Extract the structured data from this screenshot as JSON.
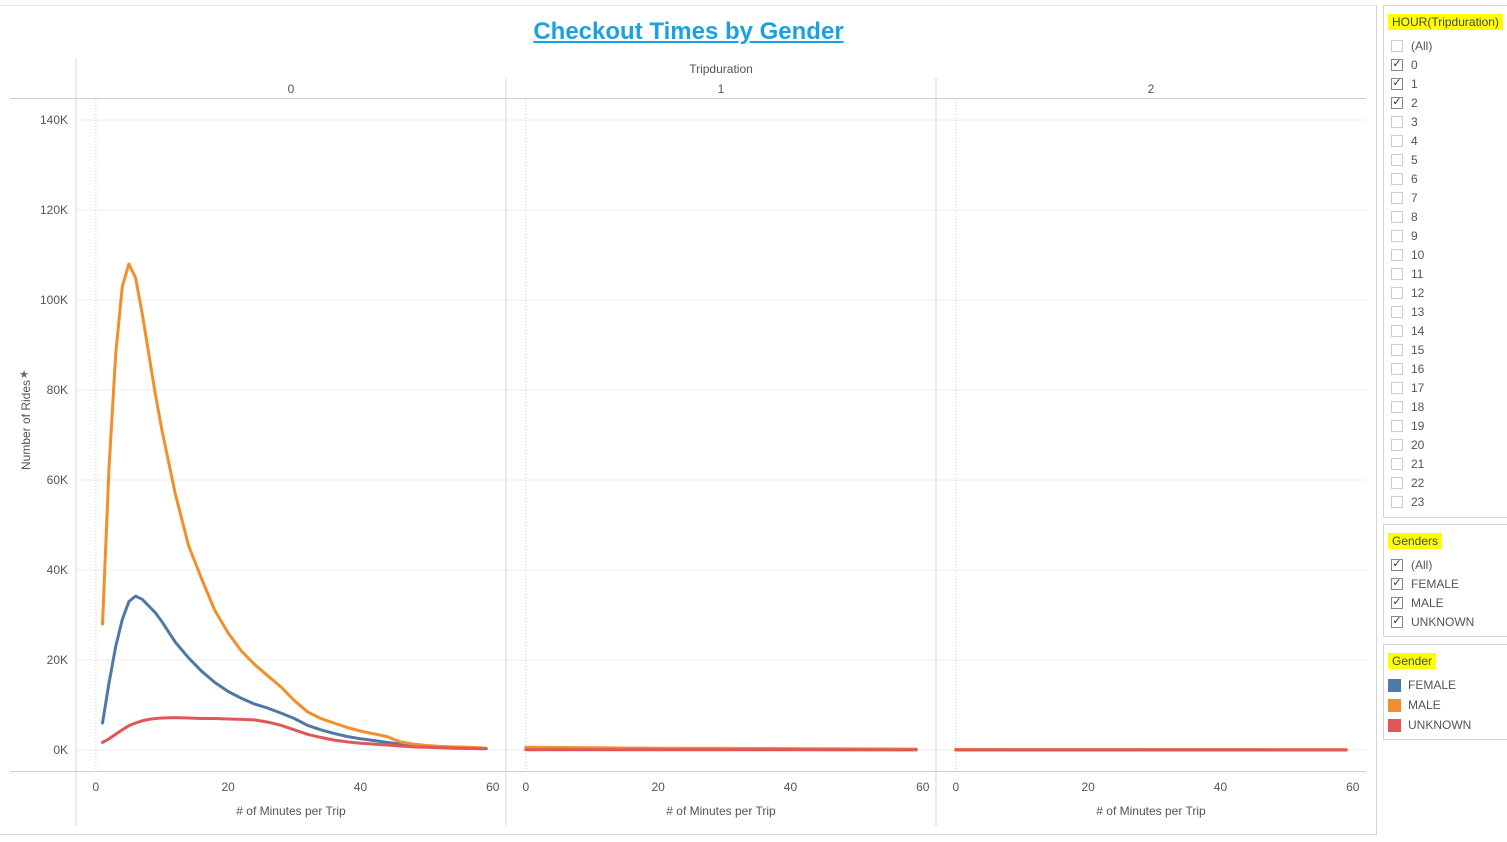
{
  "title": "Checkout Times by Gender",
  "chart_data": {
    "type": "line",
    "column_header": "Tripduration",
    "panels": [
      {
        "label": "0",
        "xlabel": "# of Minutes per Trip",
        "xticks": [
          0,
          20,
          40,
          60
        ],
        "series": [
          {
            "name": "FEMALE",
            "color": "#4e79a7",
            "x": [
              1,
              2,
              3,
              4,
              5,
              6,
              7,
              8,
              9,
              10,
              12,
              14,
              16,
              18,
              20,
              22,
              24,
              26,
              28,
              30,
              32,
              34,
              36,
              38,
              40,
              42,
              44,
              46,
              48,
              50,
              52,
              54,
              56,
              58,
              59
            ],
            "y": [
              6000,
              15000,
              23000,
              29000,
              33000,
              34200,
              33500,
              32000,
              30500,
              28500,
              24000,
              20500,
              17500,
              15000,
              13000,
              11500,
              10200,
              9300,
              8200,
              7000,
              5500,
              4500,
              3700,
              3000,
              2500,
              2100,
              1700,
              1300,
              1000,
              800,
              600,
              500,
              400,
              300,
              300
            ]
          },
          {
            "name": "MALE",
            "color": "#f28e2b",
            "x": [
              1,
              2,
              3,
              4,
              5,
              6,
              7,
              8,
              9,
              10,
              12,
              14,
              16,
              18,
              20,
              22,
              24,
              26,
              28,
              30,
              32,
              34,
              36,
              38,
              40,
              42,
              44,
              46,
              48,
              50,
              52,
              54,
              56,
              58,
              59
            ],
            "y": [
              28000,
              63000,
              88000,
              103000,
              108000,
              105000,
              97000,
              88000,
              79000,
              71000,
              57000,
              45500,
              38000,
              31000,
              26000,
              22000,
              19000,
              16500,
              14000,
              11000,
              8500,
              7000,
              6000,
              5000,
              4200,
              3600,
              3000,
              1800,
              1300,
              1000,
              800,
              700,
              600,
              500,
              400
            ]
          },
          {
            "name": "UNKNOWN",
            "color": "#e15759",
            "x": [
              1,
              2,
              3,
              4,
              5,
              6,
              7,
              8,
              9,
              10,
              12,
              14,
              16,
              18,
              20,
              22,
              24,
              26,
              28,
              30,
              32,
              34,
              36,
              38,
              40,
              42,
              44,
              46,
              48,
              50,
              52,
              54,
              56,
              58,
              59
            ],
            "y": [
              1700,
              2500,
              3500,
              4500,
              5400,
              6000,
              6500,
              6800,
              7000,
              7100,
              7200,
              7100,
              7000,
              7000,
              6900,
              6800,
              6700,
              6200,
              5500,
              4500,
              3500,
              2800,
              2200,
              1800,
              1500,
              1300,
              1100,
              900,
              700,
              600,
              500,
              400,
              350,
              300,
              300
            ]
          }
        ]
      },
      {
        "label": "1",
        "xlabel": "# of Minutes per Trip",
        "xticks": [
          0,
          20,
          40,
          60
        ],
        "series": [
          {
            "name": "FEMALE",
            "color": "#4e79a7",
            "x": [
              0,
              10,
              20,
              30,
              40,
              50,
              59
            ],
            "y": [
              300,
              250,
              200,
              200,
              150,
              150,
              100
            ]
          },
          {
            "name": "MALE",
            "color": "#f28e2b",
            "x": [
              0,
              10,
              20,
              30,
              40,
              50,
              59
            ],
            "y": [
              600,
              500,
              400,
              350,
              300,
              250,
              200
            ]
          },
          {
            "name": "UNKNOWN",
            "color": "#e15759",
            "x": [
              0,
              10,
              20,
              30,
              40,
              50,
              59
            ],
            "y": [
              50,
              50,
              50,
              40,
              40,
              30,
              30
            ]
          }
        ]
      },
      {
        "label": "2",
        "xlabel": "# of Minutes per Trip",
        "xticks": [
          0,
          20,
          40,
          60
        ],
        "series": [
          {
            "name": "FEMALE",
            "color": "#4e79a7",
            "x": [
              0,
              10,
              20,
              30,
              40,
              50,
              59
            ],
            "y": [
              50,
              50,
              40,
              40,
              40,
              30,
              30
            ]
          },
          {
            "name": "MALE",
            "color": "#f28e2b",
            "x": [
              0,
              10,
              20,
              30,
              40,
              50,
              59
            ],
            "y": [
              100,
              90,
              80,
              70,
              60,
              50,
              50
            ]
          },
          {
            "name": "UNKNOWN",
            "color": "#e15759",
            "x": [
              0,
              10,
              20,
              30,
              40,
              50,
              59
            ],
            "y": [
              10,
              10,
              10,
              10,
              10,
              10,
              10
            ]
          }
        ]
      }
    ],
    "ylabel": "Number of Rides",
    "yticks": [
      0,
      20000,
      40000,
      60000,
      80000,
      100000,
      120000,
      140000
    ],
    "ytick_labels": [
      "0K",
      "20K",
      "40K",
      "60K",
      "80K",
      "100K",
      "120K",
      "140K"
    ],
    "ylim": [
      0,
      150000
    ],
    "xlim": [
      -3,
      62
    ],
    "grid": true,
    "legend": {
      "title": "Gender",
      "entries": [
        {
          "name": "FEMALE",
          "color": "#4e79a7"
        },
        {
          "name": "MALE",
          "color": "#f28e2b"
        },
        {
          "name": "UNKNOWN",
          "color": "#e15759"
        }
      ]
    }
  },
  "filters": [
    {
      "title": "HOUR(Tripduration)",
      "items": [
        {
          "label": "(All)",
          "checked": false
        },
        {
          "label": "0",
          "checked": true
        },
        {
          "label": "1",
          "checked": true
        },
        {
          "label": "2",
          "checked": true
        },
        {
          "label": "3",
          "checked": false
        },
        {
          "label": "4",
          "checked": false
        },
        {
          "label": "5",
          "checked": false
        },
        {
          "label": "6",
          "checked": false
        },
        {
          "label": "7",
          "checked": false
        },
        {
          "label": "8",
          "checked": false
        },
        {
          "label": "9",
          "checked": false
        },
        {
          "label": "10",
          "checked": false
        },
        {
          "label": "11",
          "checked": false
        },
        {
          "label": "12",
          "checked": false
        },
        {
          "label": "13",
          "checked": false
        },
        {
          "label": "14",
          "checked": false
        },
        {
          "label": "15",
          "checked": false
        },
        {
          "label": "16",
          "checked": false
        },
        {
          "label": "17",
          "checked": false
        },
        {
          "label": "18",
          "checked": false
        },
        {
          "label": "19",
          "checked": false
        },
        {
          "label": "20",
          "checked": false
        },
        {
          "label": "21",
          "checked": false
        },
        {
          "label": "22",
          "checked": false
        },
        {
          "label": "23",
          "checked": false
        }
      ]
    },
    {
      "title": "Genders",
      "items": [
        {
          "label": "(All)",
          "checked": true
        },
        {
          "label": "FEMALE",
          "checked": true
        },
        {
          "label": "MALE",
          "checked": true
        },
        {
          "label": "UNKNOWN",
          "checked": true
        }
      ]
    }
  ]
}
